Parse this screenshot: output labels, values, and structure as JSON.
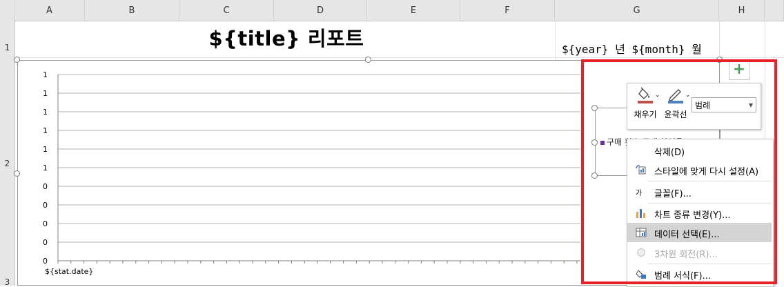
{
  "sheet": {
    "columns": [
      "A",
      "B",
      "C",
      "D",
      "E",
      "F",
      "G",
      "H"
    ],
    "rows": [
      "1",
      "2",
      "3"
    ]
  },
  "title": "${title} 리포트",
  "year_month": "${year} 년 ${month} 월",
  "chart": {
    "x_label": "${stat.date}",
    "legend": "구매 횟수  구매 할인율"
  },
  "chart_data": {
    "type": "line",
    "y_tick_labels": [
      "1",
      "1",
      "1",
      "1",
      "1",
      "1",
      "0",
      "0",
      "0",
      "0",
      "0"
    ],
    "x_category": "${stat.date}",
    "series": [
      {
        "name": "구매 횟수",
        "values": []
      },
      {
        "name": "구매 할인율",
        "values": []
      }
    ],
    "grid": true,
    "legend_placement": "right"
  },
  "mini_toolbar": {
    "fill_label": "채우기",
    "outline_label": "윤곽선",
    "select_value": "범례",
    "fill_color": "#c0504d",
    "outline_color": "#4f81bd"
  },
  "context_menu": [
    {
      "label": "삭제(D)",
      "icon": "delete-icon",
      "disabled": false
    },
    {
      "label": "스타일에 맞게 다시 설정(A)",
      "icon": "reset-style-icon",
      "disabled": false
    },
    {
      "label": "글꼴(F)...",
      "icon": "font-icon",
      "disabled": false
    },
    {
      "label": "차트 종류 변경(Y)...",
      "icon": "chart-type-icon",
      "disabled": false
    },
    {
      "label": "데이터 선택(E)...",
      "icon": "select-data-icon",
      "disabled": false
    },
    {
      "label": "3차원 회전(R)...",
      "icon": "3d-rotation-icon",
      "disabled": true
    },
    {
      "label": "범례 서식(F)...",
      "icon": "legend-format-icon",
      "disabled": false
    }
  ],
  "plus_symbol": "+",
  "font_icon_glyph": "가",
  "colors": {
    "highlight": "#e8202a",
    "accent": "#217346"
  }
}
